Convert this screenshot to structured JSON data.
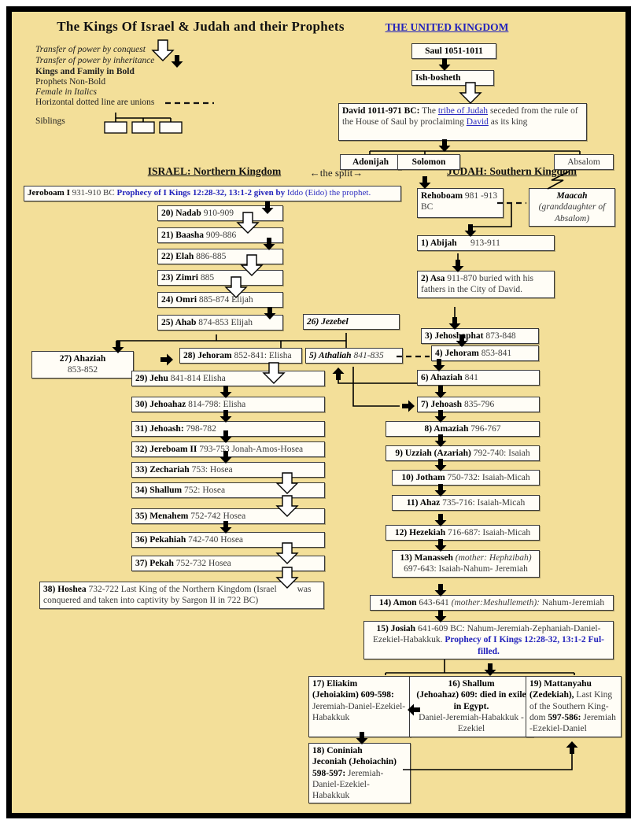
{
  "title": "The Kings Of Israel & Judah and their Prophets",
  "legend": {
    "conquest": "Transfer of power by conquest",
    "inheritance": "Transfer of power by inheritance",
    "kings_bold": "Kings and Family in Bold",
    "prophets": "Prophets Non-Bold",
    "female": "Female in Italics",
    "unions": "Horizontal dotted line are unions",
    "siblings": "Siblings"
  },
  "headers": {
    "united_kingdom": "THE UNITED KINGDOM",
    "israel": "ISRAEL: Northern Kingdom",
    "split": "←the split→",
    "judah": "JUDAH: Southern Kingdom"
  },
  "colors": {
    "background": "#f3df99",
    "box_border": "#3a3a3a",
    "blue_text": "#2222bb"
  },
  "boxes": {
    "saul": {
      "segments": [
        {
          "t": "Saul 1051-1011",
          "s": "b"
        }
      ]
    },
    "ishbosheth": {
      "segments": [
        {
          "t": "Ish-bosheth",
          "s": "b"
        }
      ]
    },
    "david": {
      "segments": [
        {
          "t": "David 1011-971 BC:",
          "s": "b"
        },
        {
          "t": " The ",
          "s": "n"
        },
        {
          "t": "tribe of Judah",
          "s": "l"
        },
        {
          "t": " seceded from the rule of the House of Saul by proclaiming ",
          "s": "n"
        },
        {
          "t": "David",
          "s": "l"
        },
        {
          "t": " as its king",
          "s": "n"
        }
      ]
    },
    "adonijah": {
      "segments": [
        {
          "t": "Adonijah",
          "s": "b"
        }
      ]
    },
    "solomon": {
      "segments": [
        {
          "t": "Solomon",
          "s": "b"
        }
      ]
    },
    "absalom": {
      "segments": [
        {
          "t": "Absalom",
          "s": "n"
        }
      ]
    },
    "jeroboam": {
      "segments": [
        {
          "t": "Jeroboam I ",
          "s": "b"
        },
        {
          "t": "931-910 BC ",
          "s": "n"
        },
        {
          "t": "Prophecy of I Kings 12:28-32, 13:1-2 given by ",
          "s": "bb"
        },
        {
          "t": "Iddo (Eido) the prophet.",
          "s": "nb"
        }
      ]
    },
    "rehoboam": {
      "segments": [
        {
          "t": "Rehoboam ",
          "s": "b"
        },
        {
          "t": "981 -913 BC",
          "s": "n"
        }
      ]
    },
    "maacah": {
      "segments": [
        {
          "t": "Maacah ",
          "s": "bi"
        },
        {
          "t": "(granddaughter of Absalom)",
          "s": "i"
        }
      ]
    },
    "k1": {
      "segments": [
        {
          "t": "1) Abijah",
          "s": "b"
        },
        {
          "t": "      913-911",
          "s": "n"
        }
      ]
    },
    "k2": {
      "segments": [
        {
          "t": "2) Asa ",
          "s": "b"
        },
        {
          "t": "911-870 buried with his fathers in the City of David.",
          "s": "n"
        }
      ]
    },
    "k3": {
      "segments": [
        {
          "t": "3) Jehoshaphat ",
          "s": "b"
        },
        {
          "t": "873-848",
          "s": "n"
        }
      ]
    },
    "k4": {
      "segments": [
        {
          "t": "4) Jehoram ",
          "s": "b"
        },
        {
          "t": "853-841",
          "s": "n"
        }
      ]
    },
    "k5": {
      "segments": [
        {
          "t": "5) Athaliah ",
          "s": "bi"
        },
        {
          "t": "841-835",
          "s": "i"
        }
      ]
    },
    "k6": {
      "segments": [
        {
          "t": "6) Ahaziah ",
          "s": "b"
        },
        {
          "t": "841",
          "s": "n"
        }
      ]
    },
    "k7": {
      "segments": [
        {
          "t": "7) Jehoash ",
          "s": "b"
        },
        {
          "t": "835-796",
          "s": "n"
        }
      ]
    },
    "k8": {
      "segments": [
        {
          "t": "8) Amaziah ",
          "s": "b"
        },
        {
          "t": "796-767",
          "s": "n"
        }
      ]
    },
    "k9": {
      "segments": [
        {
          "t": "9) Uzziah (Azariah) ",
          "s": "b"
        },
        {
          "t": "792-740: Isaiah",
          "s": "n"
        }
      ]
    },
    "k10": {
      "segments": [
        {
          "t": "10) Jotham ",
          "s": "b"
        },
        {
          "t": "750-732: Isaiah-Micah",
          "s": "n"
        }
      ]
    },
    "k11": {
      "segments": [
        {
          "t": "11) Ahaz ",
          "s": "b"
        },
        {
          "t": "735-716: Isaiah-Micah",
          "s": "n"
        }
      ]
    },
    "k12": {
      "segments": [
        {
          "t": "12) Hezekiah ",
          "s": "b"
        },
        {
          "t": "716-687: Isaiah-Micah",
          "s": "n"
        }
      ]
    },
    "k13": {
      "segments": [
        {
          "t": "13) Manasseh ",
          "s": "b"
        },
        {
          "t": "(mother: Hephzibah)",
          "s": "i"
        },
        {
          "t": "\n697-643: Isaiah-Nahum- Jeremiah",
          "s": "n"
        }
      ]
    },
    "k14": {
      "segments": [
        {
          "t": "14) Amon ",
          "s": "b"
        },
        {
          "t": "643-641 ",
          "s": "n"
        },
        {
          "t": "(mother:Meshullemeth):",
          "s": "i"
        },
        {
          "t": " Nahum-Jeremiah",
          "s": "n"
        }
      ]
    },
    "k15": {
      "segments": [
        {
          "t": "15) Josiah ",
          "s": "b"
        },
        {
          "t": "641-609 BC: Nahum-Jeremiah-Zephaniah-Daniel-Ezekiel-Habakkuk. ",
          "s": "n"
        },
        {
          "t": "Prophecy of I Kings 12:28-32, 13:1-2 Ful-filled.",
          "s": "bb"
        }
      ]
    },
    "k16": {
      "segments": [
        {
          "t": "16) Shallum",
          "s": "b"
        },
        {
          "t": "\n(Jehoahaz) 609:  died in exile in Egypt.",
          "s": "b"
        },
        {
          "t": "\nDaniel-Jeremiah-Habakkuk -Ezekiel",
          "s": "n"
        }
      ]
    },
    "k17": {
      "segments": [
        {
          "t": "17) Eliakim",
          "s": "b"
        },
        {
          "t": "\n(Jehoiakim) 609-598:",
          "s": "b"
        },
        {
          "t": "\nJeremiah-Daniel-Ezekiel-Habakkuk",
          "s": "n"
        }
      ]
    },
    "k18": {
      "segments": [
        {
          "t": "18) Coniniah",
          "s": "b"
        },
        {
          "t": "\nJeconiah (Jehoiachin)",
          "s": "b"
        },
        {
          "t": "\n598-597:",
          "s": "b"
        },
        {
          "t": " Jeremiah-Daniel-Ezekiel-Habakkuk",
          "s": "n"
        }
      ]
    },
    "k19": {
      "segments": [
        {
          "t": "19) Mattanyahu",
          "s": "b"
        },
        {
          "t": "\n(Zedekiah),",
          "s": "b"
        },
        {
          "t": " Last King of the Southern King-dom ",
          "s": "n"
        },
        {
          "t": "597-586:",
          "s": "b"
        },
        {
          "t": " Jeremiah -Ezekiel-Daniel",
          "s": "n"
        }
      ]
    },
    "k20": {
      "segments": [
        {
          "t": "20) Nadab ",
          "s": "b"
        },
        {
          "t": "910-909",
          "s": "n"
        }
      ]
    },
    "k21": {
      "segments": [
        {
          "t": "21) Baasha ",
          "s": "b"
        },
        {
          "t": "909-886",
          "s": "n"
        }
      ]
    },
    "k22": {
      "segments": [
        {
          "t": "22) Elah ",
          "s": "b"
        },
        {
          "t": "886-885",
          "s": "n"
        }
      ]
    },
    "k23": {
      "segments": [
        {
          "t": "23) Zimri ",
          "s": "b"
        },
        {
          "t": "885",
          "s": "n"
        }
      ]
    },
    "k24": {
      "segments": [
        {
          "t": "24) Omri ",
          "s": "b"
        },
        {
          "t": "885-874 Elijah",
          "s": "n"
        }
      ]
    },
    "k25": {
      "segments": [
        {
          "t": "25) Ahab ",
          "s": "b"
        },
        {
          "t": "874-853 Elijah",
          "s": "n"
        }
      ]
    },
    "k26": {
      "segments": [
        {
          "t": "26) Jezebel",
          "s": "bi"
        }
      ]
    },
    "k27": {
      "segments": [
        {
          "t": "27) Ahaziah",
          "s": "b"
        },
        {
          "t": "\n853-852",
          "s": "n"
        }
      ]
    },
    "k28": {
      "segments": [
        {
          "t": "28) Jehoram ",
          "s": "b"
        },
        {
          "t": "852-841: Elisha",
          "s": "n"
        }
      ]
    },
    "k29": {
      "segments": [
        {
          "t": "29) Jehu ",
          "s": "b"
        },
        {
          "t": "841-814 Elisha",
          "s": "n"
        }
      ]
    },
    "k30": {
      "segments": [
        {
          "t": "30) Jehoahaz ",
          "s": "b"
        },
        {
          "t": "814-798: Elisha",
          "s": "n"
        }
      ]
    },
    "k31": {
      "segments": [
        {
          "t": "31) Jehoash: ",
          "s": "b"
        },
        {
          "t": "798-782",
          "s": "n"
        }
      ]
    },
    "k32": {
      "segments": [
        {
          "t": "32) Jereboam II ",
          "s": "b"
        },
        {
          "t": "793-753 Jonah-Amos-Hosea",
          "s": "n"
        }
      ]
    },
    "k33": {
      "segments": [
        {
          "t": "33) Zechariah ",
          "s": "b"
        },
        {
          "t": "753: Hosea",
          "s": "n"
        }
      ]
    },
    "k34": {
      "segments": [
        {
          "t": "34) Shallum ",
          "s": "b"
        },
        {
          "t": "752: Hosea",
          "s": "n"
        }
      ]
    },
    "k35": {
      "segments": [
        {
          "t": "35) Menahem ",
          "s": "b"
        },
        {
          "t": "752-742 Hosea",
          "s": "n"
        }
      ]
    },
    "k36": {
      "segments": [
        {
          "t": "36) Pekahiah ",
          "s": "b"
        },
        {
          "t": "742-740 Hosea",
          "s": "n"
        }
      ]
    },
    "k37": {
      "segments": [
        {
          "t": "37) Pekah ",
          "s": "b"
        },
        {
          "t": "752-732 Hosea",
          "s": "n"
        }
      ]
    },
    "k38": {
      "segments": [
        {
          "t": "38) Hoshea ",
          "s": "b"
        },
        {
          "t": "732-722 Last King of the Northern Kingdom (Israel         was conquered and taken into captivity by Sargon II in 722 BC)",
          "s": "n"
        }
      ]
    }
  }
}
